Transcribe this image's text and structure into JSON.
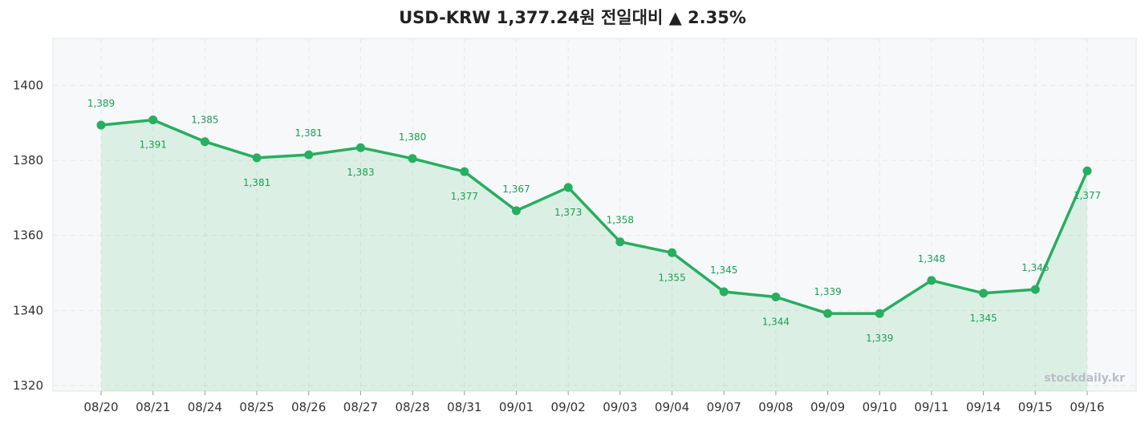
{
  "chart_data": {
    "type": "line",
    "title": "USD-KRW  1,377.24원  전일대비 ▲ 2.35%",
    "xlabel": "",
    "ylabel": "",
    "ylim": [
      1318.5,
      1412.5
    ],
    "yticks": [
      1320,
      1340,
      1360,
      1380,
      1400
    ],
    "grid": true,
    "area_fill": true,
    "categories": [
      "08/20",
      "08/21",
      "08/24",
      "08/25",
      "08/26",
      "08/27",
      "08/28",
      "08/31",
      "09/01",
      "09/02",
      "09/03",
      "09/04",
      "09/07",
      "09/08",
      "09/09",
      "09/10",
      "09/11",
      "09/14",
      "09/15",
      "09/16"
    ],
    "series": [
      {
        "values": [
          1389.4,
          1390.8,
          1385.0,
          1380.7,
          1381.5,
          1383.4,
          1380.5,
          1377.0,
          1366.6,
          1372.8,
          1358.3,
          1355.4,
          1345.0,
          1343.6,
          1339.2,
          1339.2,
          1348.0,
          1344.6,
          1345.6,
          1377.2
        ],
        "labels": [
          "1,389",
          "1,391",
          "1,385",
          "1,381",
          "1,381",
          "1,383",
          "1,380",
          "1,377",
          "1,367",
          "1,373",
          "1,358",
          "1,355",
          "1,345",
          "1,344",
          "1,339",
          "1,339",
          "1,348",
          "1,345",
          "1,346",
          "1,377"
        ],
        "label_pos": [
          "above",
          "below",
          "above",
          "below",
          "above",
          "below",
          "above",
          "below",
          "above",
          "below",
          "above",
          "below",
          "above",
          "below",
          "above",
          "below",
          "above",
          "below",
          "above",
          "below"
        ]
      }
    ],
    "colors": {
      "line": "#27ae60",
      "fill": "#27ae60",
      "label": "#1aa052",
      "plot_bg": "#f7f8fa",
      "grid": "#e6e8eb"
    },
    "watermark": "stockdaily.kr"
  }
}
